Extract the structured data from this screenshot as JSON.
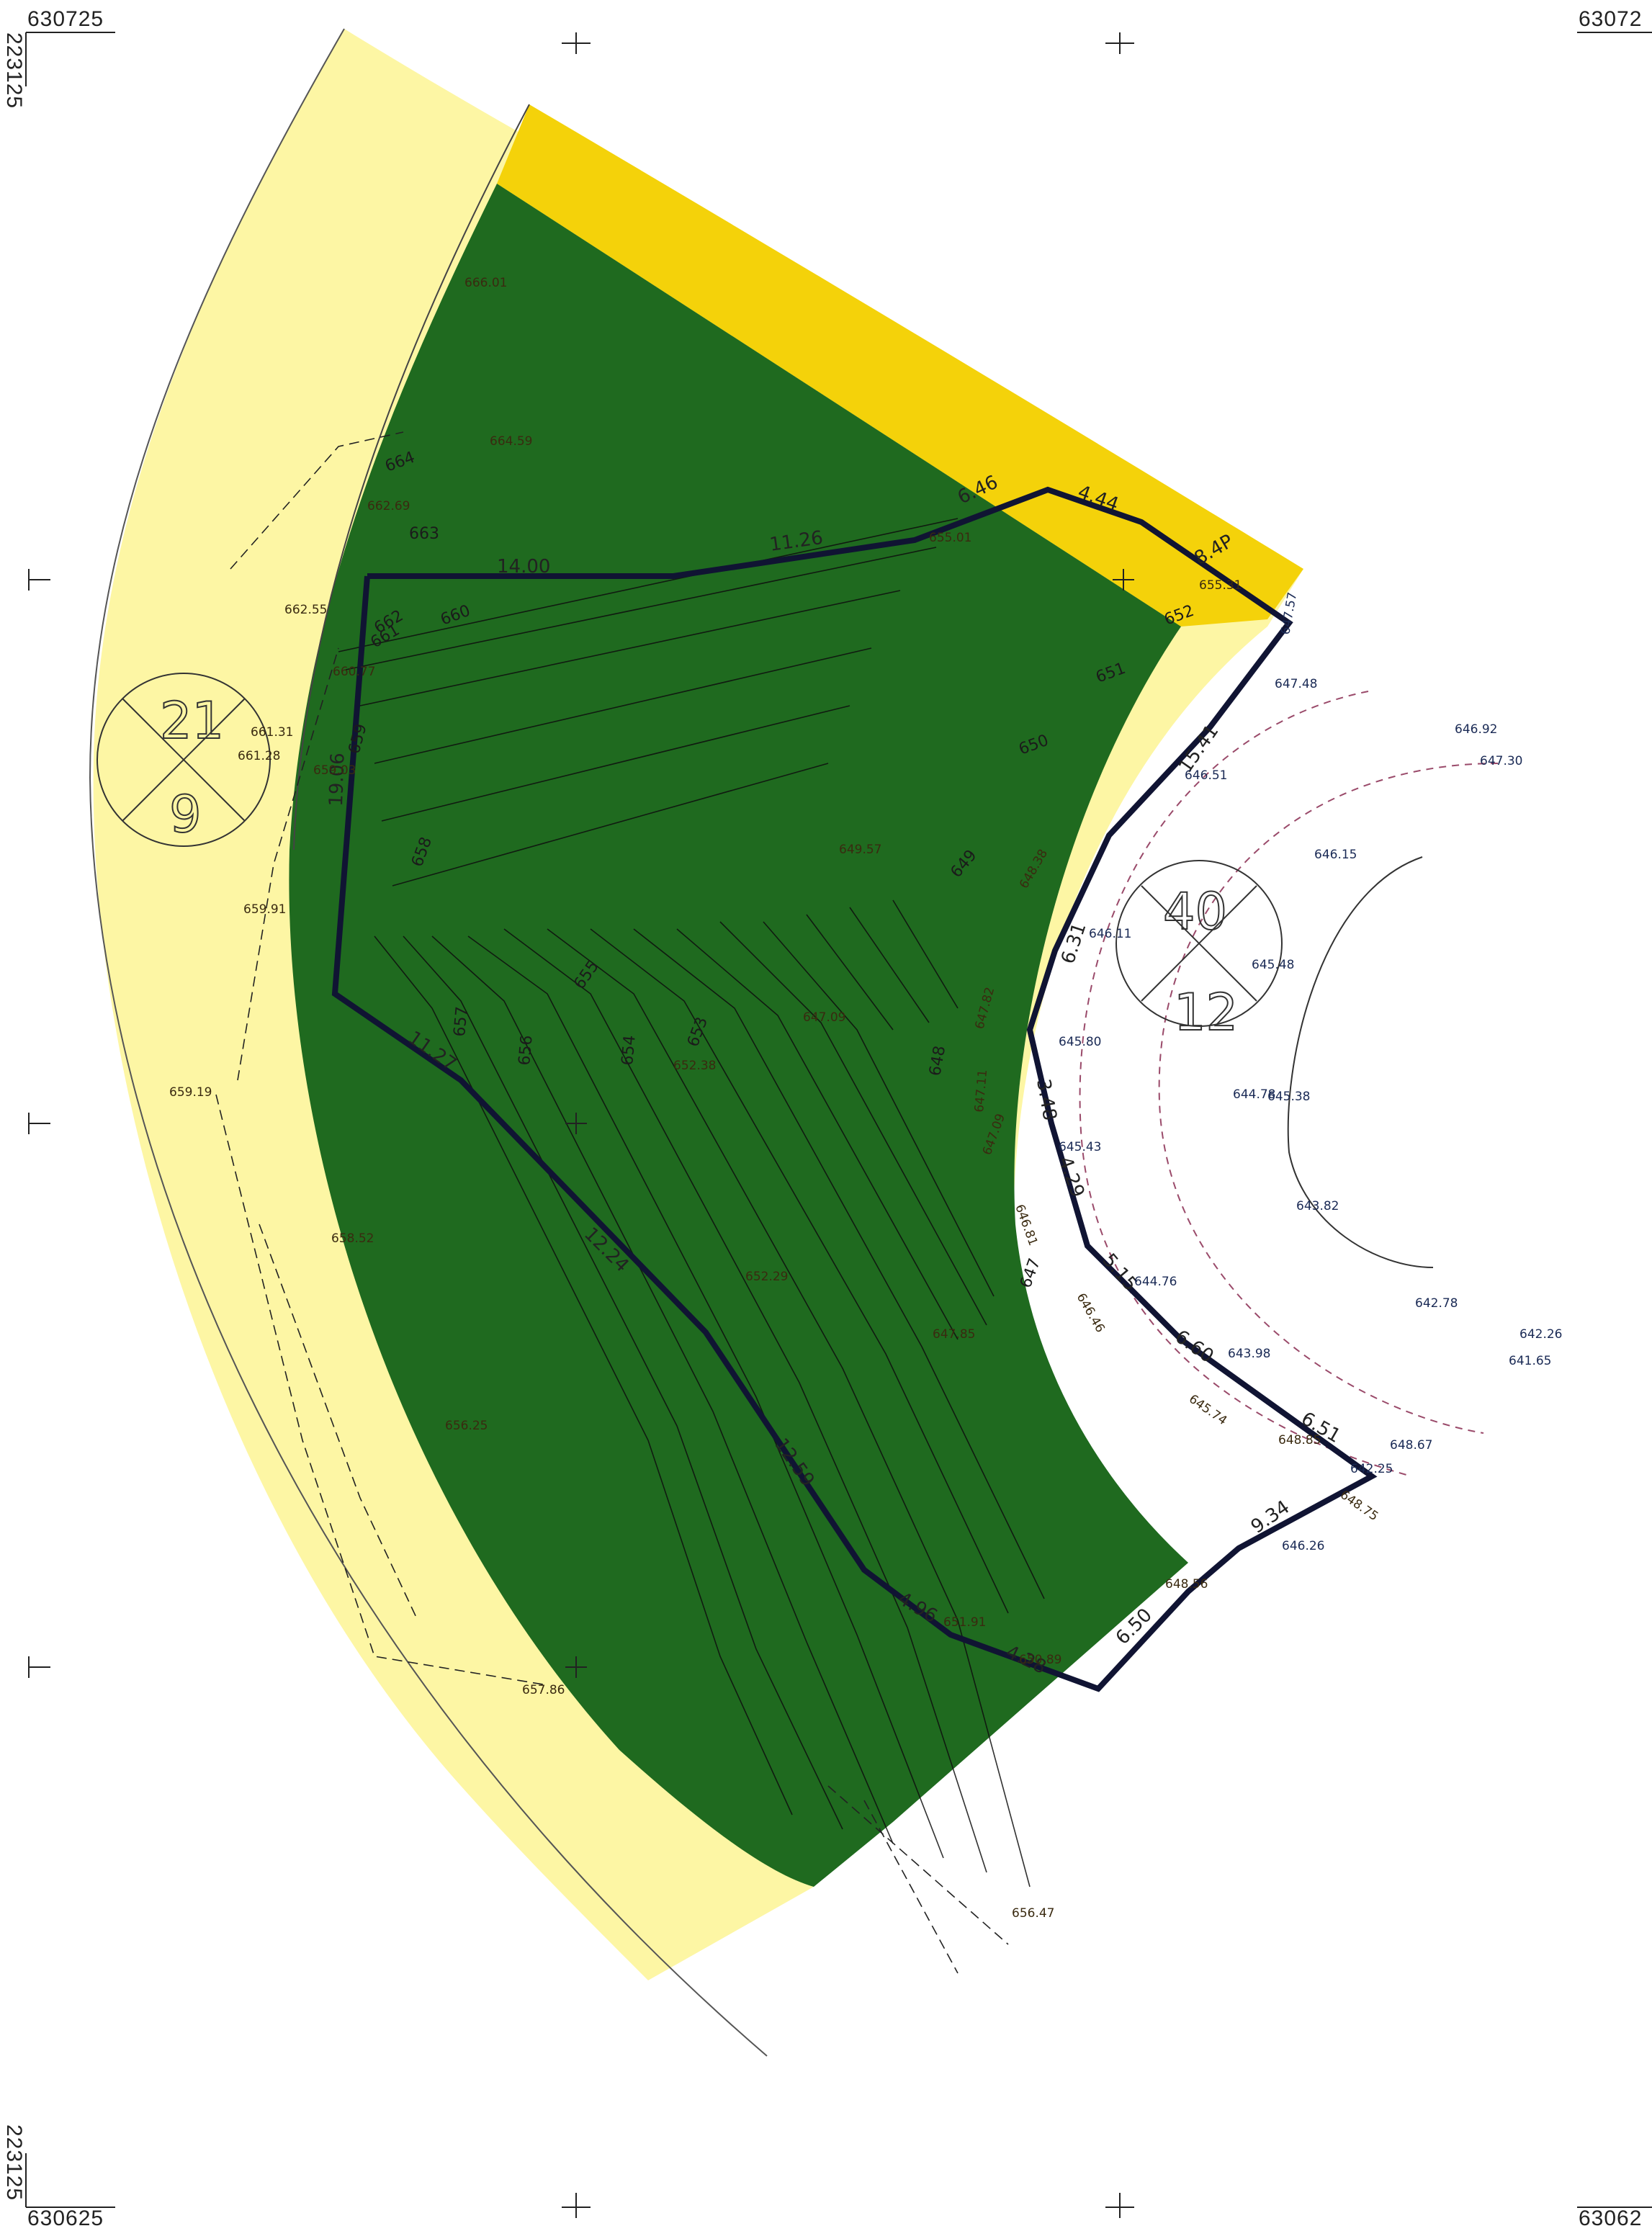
{
  "grid": {
    "top_left_x": "630725",
    "top_right_x": "63072",
    "bottom_left_x": "630625",
    "bottom_right_x": "63062",
    "top_left_y": "223125",
    "bottom_left_y": "223125"
  },
  "parcels": [
    {
      "top": "21",
      "bottom": "9"
    },
    {
      "top": "40",
      "bottom": "12"
    }
  ],
  "boundary_dimensions": [
    "14.00",
    "11.26",
    "6.46",
    "4.44",
    "8.4P",
    "15.41",
    "6.31",
    "3.48",
    "4.29",
    "5.15",
    "6.60",
    "6.51",
    "9.34",
    "6.50",
    "4.28",
    "4.96",
    "12.59",
    "12.24",
    "11.27",
    "19.06"
  ],
  "contour_labels": [
    "664",
    "663",
    "662",
    "661",
    "660",
    "659",
    "658",
    "657",
    "656",
    "655",
    "654",
    "653",
    "652",
    "651",
    "650",
    "649",
    "648",
    "647"
  ],
  "spot_elevations": [
    "666.01",
    "664.59",
    "662.69",
    "662.55",
    "660.77",
    "661.31",
    "661.28",
    "659.03",
    "659.91",
    "659.19",
    "658.52",
    "656.25",
    "657.86",
    "656.47",
    "655.01",
    "655.31",
    "649.57",
    "647.09",
    "652.38",
    "652.29",
    "647.85",
    "651.91",
    "650.89",
    "648.56",
    "646.26",
    "647.57",
    "647.48",
    "646.51",
    "646.92",
    "647.30",
    "646.15",
    "648.38",
    "646.11",
    "645.48",
    "647.82",
    "647.11",
    "645.80",
    "644.78",
    "645.38",
    "647.09",
    "645.43",
    "646.81",
    "643.82",
    "644.76",
    "646.46",
    "642.78",
    "642.26",
    "641.65",
    "643.98",
    "645.74",
    "648.85",
    "648.67",
    "642.25",
    "648.75"
  ],
  "colors": {
    "outer_zone": "#fdf6a4",
    "inner_zone": "#1f6a1f",
    "highlight_zone": "#f4d20a",
    "boundary": "#101433"
  }
}
